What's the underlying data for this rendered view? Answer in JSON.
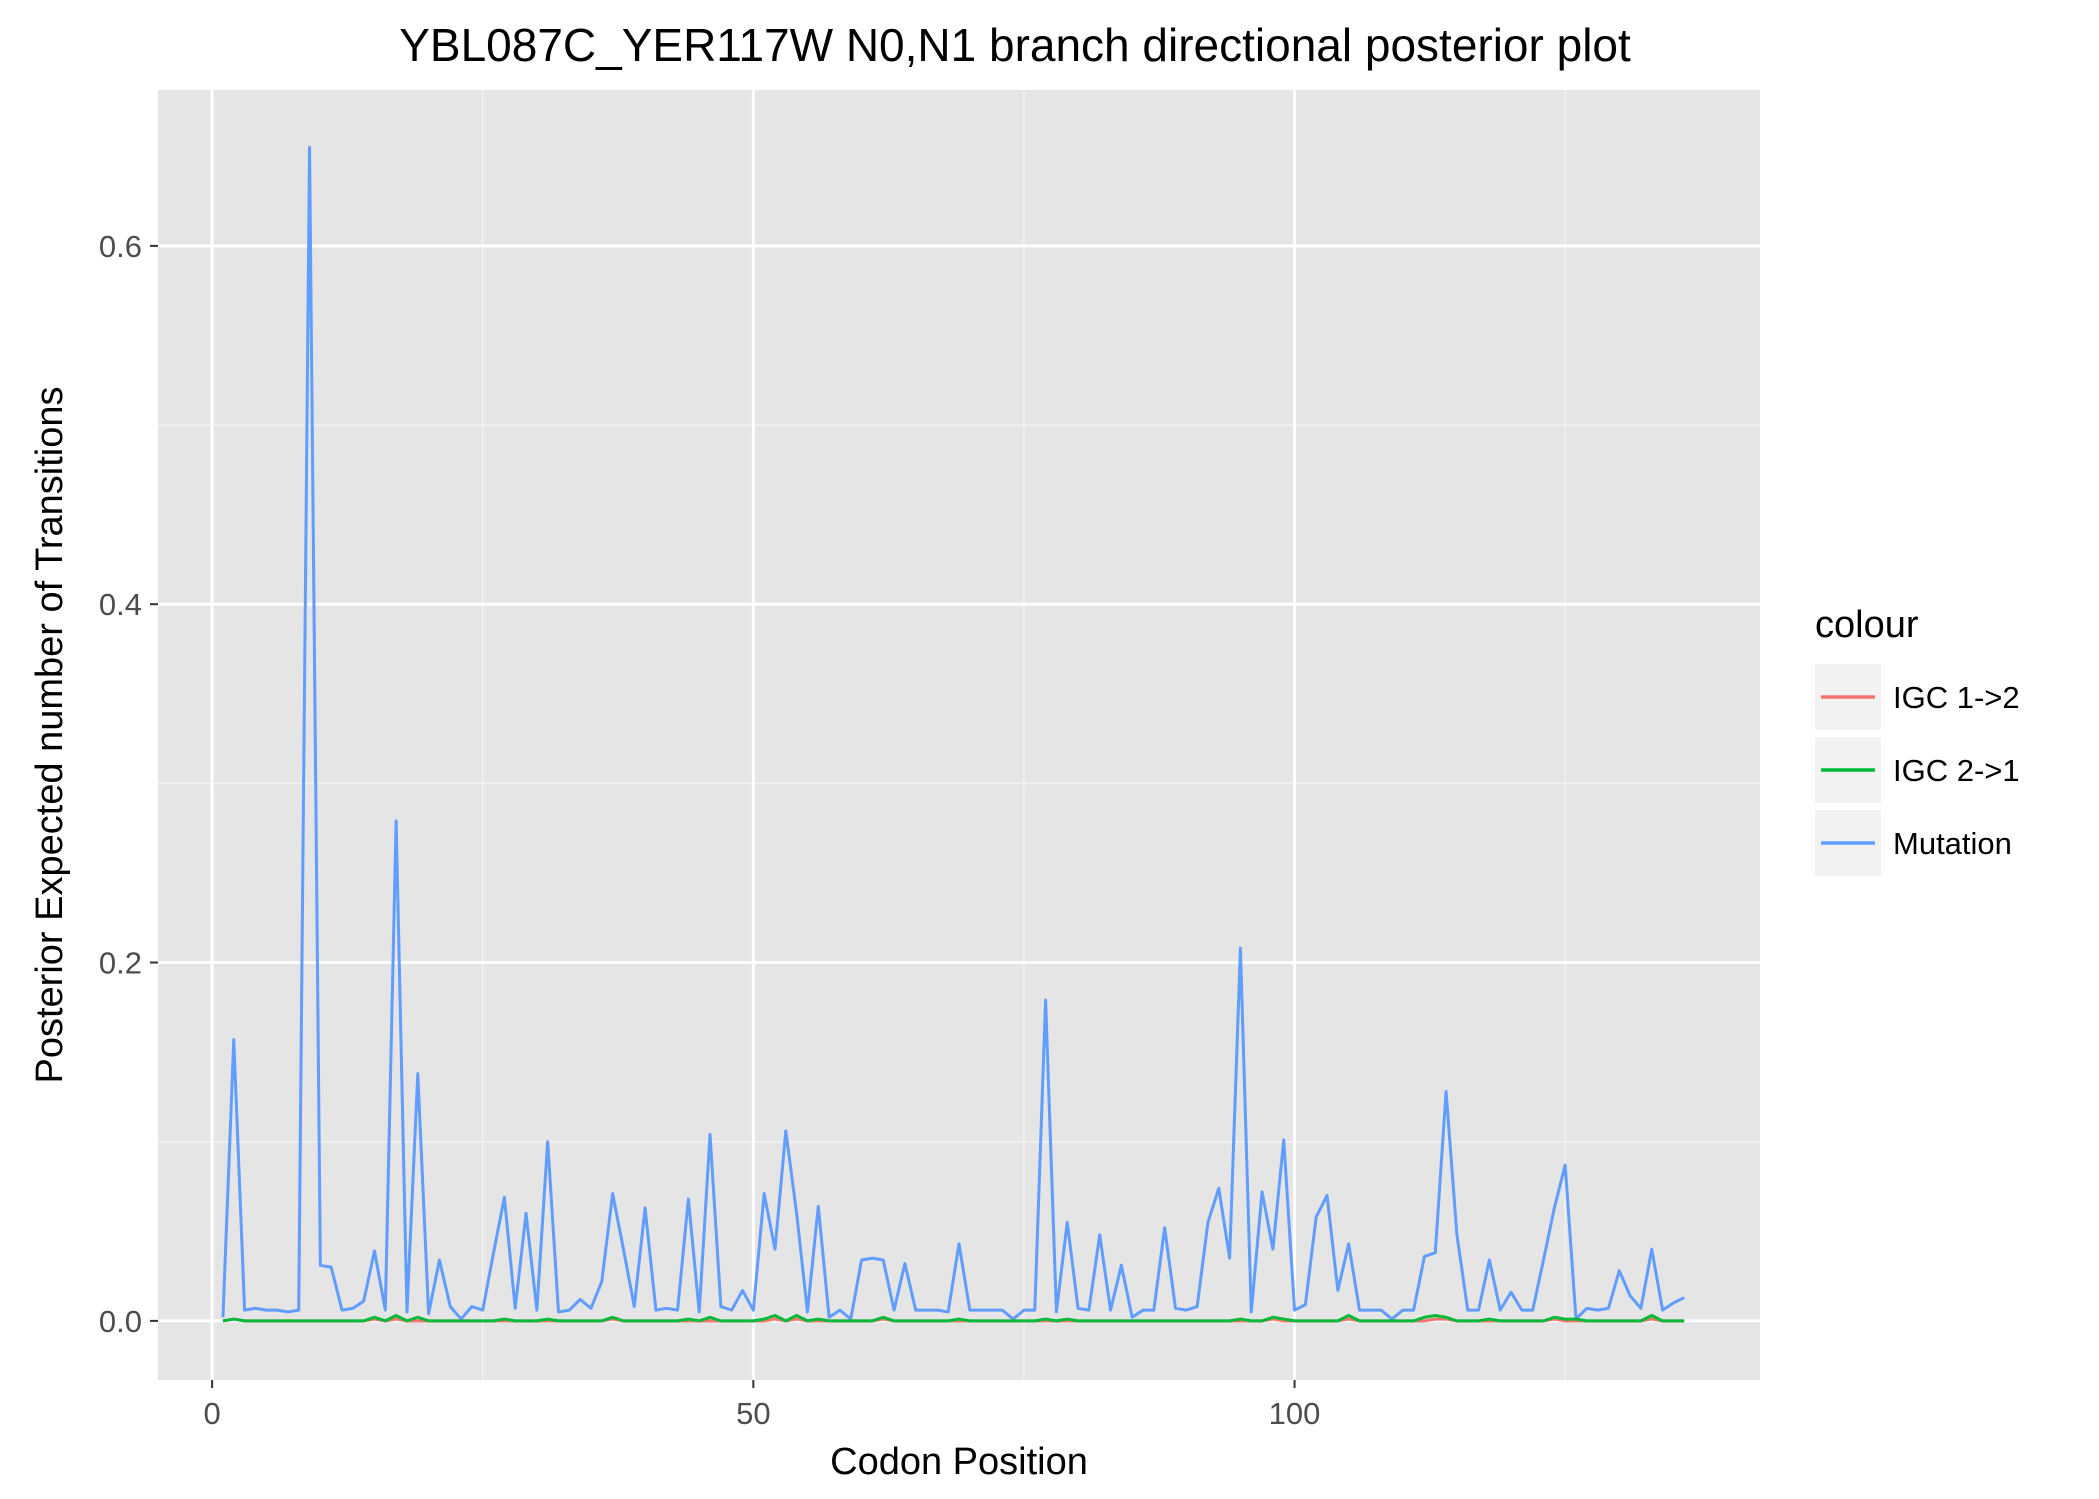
{
  "chart_data": {
    "type": "line",
    "title": "YBL087C_YER117W N0,N1 branch directional posterior plot",
    "xlabel": "Codon Position",
    "ylabel": "Posterior Expected number of Transitions",
    "xlim": [
      -5,
      143
    ],
    "ylim": [
      -0.033,
      0.687
    ],
    "x_ticks": [
      0,
      50,
      100
    ],
    "x_tick_labels": [
      "0",
      "50",
      "100"
    ],
    "y_ticks": [
      0.0,
      0.2,
      0.4,
      0.6
    ],
    "y_tick_labels": [
      "0.0",
      "0.2",
      "0.4",
      "0.6"
    ],
    "grid": true,
    "legend_position": "right",
    "legend": {
      "title": "colour",
      "entries": [
        "IGC 1->2",
        "IGC 2->1",
        "Mutation"
      ]
    },
    "series": [
      {
        "name": "Mutation",
        "color": "#619CFF",
        "x": [
          1,
          2,
          3,
          4,
          5,
          6,
          7,
          8,
          9,
          10,
          11,
          12,
          13,
          14,
          15,
          16,
          17,
          18,
          19,
          20,
          21,
          22,
          23,
          24,
          25,
          26,
          27,
          28,
          29,
          30,
          31,
          32,
          33,
          34,
          35,
          36,
          37,
          38,
          39,
          40,
          41,
          42,
          43,
          44,
          45,
          46,
          47,
          48,
          49,
          50,
          51,
          52,
          53,
          54,
          55,
          56,
          57,
          58,
          59,
          60,
          61,
          62,
          63,
          64,
          65,
          66,
          67,
          68,
          69,
          70,
          71,
          72,
          73,
          74,
          75,
          76,
          77,
          78,
          79,
          80,
          81,
          82,
          83,
          84,
          85,
          86,
          87,
          88,
          89,
          90,
          91,
          92,
          93,
          94,
          95,
          96,
          97,
          98,
          99,
          100,
          101,
          102,
          103,
          104,
          105,
          106,
          107,
          108,
          109,
          110,
          111,
          112,
          113,
          114,
          115,
          116,
          117,
          118,
          119,
          120,
          121,
          122,
          123,
          124,
          125,
          126,
          127,
          128,
          129,
          130,
          131,
          132,
          133,
          134,
          135,
          136
        ],
        "y": [
          0.002,
          0.157,
          0.006,
          0.007,
          0.006,
          0.006,
          0.005,
          0.006,
          0.655,
          0.031,
          0.03,
          0.006,
          0.007,
          0.011,
          0.039,
          0.006,
          0.279,
          0.005,
          0.138,
          0.004,
          0.034,
          0.008,
          0.001,
          0.008,
          0.006,
          0.038,
          0.069,
          0.007,
          0.06,
          0.006,
          0.1,
          0.005,
          0.006,
          0.012,
          0.007,
          0.022,
          0.071,
          0.04,
          0.008,
          0.063,
          0.006,
          0.007,
          0.006,
          0.068,
          0.005,
          0.104,
          0.008,
          0.006,
          0.017,
          0.006,
          0.071,
          0.04,
          0.106,
          0.06,
          0.005,
          0.064,
          0.002,
          0.006,
          0.001,
          0.034,
          0.035,
          0.034,
          0.006,
          0.032,
          0.006,
          0.006,
          0.006,
          0.005,
          0.043,
          0.006,
          0.006,
          0.006,
          0.006,
          0.001,
          0.006,
          0.006,
          0.179,
          0.005,
          0.055,
          0.007,
          0.006,
          0.048,
          0.006,
          0.031,
          0.002,
          0.006,
          0.006,
          0.052,
          0.007,
          0.006,
          0.008,
          0.055,
          0.074,
          0.035,
          0.208,
          0.005,
          0.072,
          0.04,
          0.101,
          0.006,
          0.009,
          0.058,
          0.07,
          0.017,
          0.043,
          0.006,
          0.006,
          0.006,
          0.001,
          0.006,
          0.006,
          0.036,
          0.038,
          0.128,
          0.048,
          0.006,
          0.006,
          0.034,
          0.006,
          0.016,
          0.006,
          0.006,
          0.034,
          0.063,
          0.087,
          0.001,
          0.007,
          0.006,
          0.007,
          0.028,
          0.014,
          0.007,
          0.04,
          0.006,
          0.01,
          0.013
        ]
      },
      {
        "name": "IGC 1->2",
        "color": "#F8766D",
        "x": [
          1,
          2,
          3,
          4,
          5,
          6,
          7,
          8,
          9,
          10,
          11,
          12,
          13,
          14,
          15,
          16,
          17,
          18,
          19,
          20,
          21,
          22,
          23,
          24,
          25,
          26,
          27,
          28,
          29,
          30,
          31,
          32,
          33,
          34,
          35,
          36,
          37,
          38,
          39,
          40,
          41,
          42,
          43,
          44,
          45,
          46,
          47,
          48,
          49,
          50,
          51,
          52,
          53,
          54,
          55,
          56,
          57,
          58,
          59,
          60,
          61,
          62,
          63,
          64,
          65,
          66,
          67,
          68,
          69,
          70,
          71,
          72,
          73,
          74,
          75,
          76,
          77,
          78,
          79,
          80,
          81,
          82,
          83,
          84,
          85,
          86,
          87,
          88,
          89,
          90,
          91,
          92,
          93,
          94,
          95,
          96,
          97,
          98,
          99,
          100,
          101,
          102,
          103,
          104,
          105,
          106,
          107,
          108,
          109,
          110,
          111,
          112,
          113,
          114,
          115,
          116,
          117,
          118,
          119,
          120,
          121,
          122,
          123,
          124,
          125,
          126,
          127,
          128,
          129,
          130,
          131,
          132,
          133,
          134,
          135,
          136
        ],
        "y": [
          0.0,
          0.001,
          0.0,
          0.0,
          0.0,
          0.0,
          0.0,
          0.0,
          0.0,
          0.0,
          0.0,
          0.0,
          0.0,
          0.0,
          0.001,
          0.0,
          0.001,
          0.0,
          0.0,
          0.0,
          0.0,
          0.0,
          0.0,
          0.0,
          0.0,
          0.0,
          0.0,
          0.0,
          0.0,
          0.0,
          0.0,
          0.0,
          0.0,
          0.0,
          0.0,
          0.0,
          0.001,
          0.0,
          0.0,
          0.0,
          0.0,
          0.0,
          0.0,
          0.0,
          0.0,
          0.0,
          0.0,
          0.0,
          0.0,
          0.0,
          0.0,
          0.001,
          0.0,
          0.001,
          0.0,
          0.0,
          0.0,
          0.0,
          0.0,
          0.0,
          0.0,
          0.001,
          0.0,
          0.0,
          0.0,
          0.0,
          0.0,
          0.0,
          0.0,
          0.0,
          0.0,
          0.0,
          0.0,
          0.0,
          0.0,
          0.0,
          0.0,
          0.0,
          0.0,
          0.0,
          0.0,
          0.0,
          0.0,
          0.0,
          0.0,
          0.0,
          0.0,
          0.0,
          0.0,
          0.0,
          0.0,
          0.0,
          0.0,
          0.0,
          0.0,
          0.0,
          0.0,
          0.001,
          0.0,
          0.0,
          0.0,
          0.0,
          0.0,
          0.0,
          0.001,
          0.0,
          0.0,
          0.0,
          0.0,
          0.0,
          0.0,
          0.0,
          0.001,
          0.001,
          0.0,
          0.0,
          0.0,
          0.0,
          0.0,
          0.0,
          0.0,
          0.0,
          0.0,
          0.001,
          0.0,
          0.0,
          0.0,
          0.0,
          0.0,
          0.0,
          0.0,
          0.0,
          0.001,
          0.0,
          0.0,
          0.0
        ]
      },
      {
        "name": "IGC 2->1",
        "color": "#00BA38",
        "x": [
          1,
          2,
          3,
          4,
          5,
          6,
          7,
          8,
          9,
          10,
          11,
          12,
          13,
          14,
          15,
          16,
          17,
          18,
          19,
          20,
          21,
          22,
          23,
          24,
          25,
          26,
          27,
          28,
          29,
          30,
          31,
          32,
          33,
          34,
          35,
          36,
          37,
          38,
          39,
          40,
          41,
          42,
          43,
          44,
          45,
          46,
          47,
          48,
          49,
          50,
          51,
          52,
          53,
          54,
          55,
          56,
          57,
          58,
          59,
          60,
          61,
          62,
          63,
          64,
          65,
          66,
          67,
          68,
          69,
          70,
          71,
          72,
          73,
          74,
          75,
          76,
          77,
          78,
          79,
          80,
          81,
          82,
          83,
          84,
          85,
          86,
          87,
          88,
          89,
          90,
          91,
          92,
          93,
          94,
          95,
          96,
          97,
          98,
          99,
          100,
          101,
          102,
          103,
          104,
          105,
          106,
          107,
          108,
          109,
          110,
          111,
          112,
          113,
          114,
          115,
          116,
          117,
          118,
          119,
          120,
          121,
          122,
          123,
          124,
          125,
          126,
          127,
          128,
          129,
          130,
          131,
          132,
          133,
          134,
          135,
          136
        ],
        "y": [
          0.0,
          0.001,
          0.0,
          0.0,
          0.0,
          0.0,
          0.0,
          0.0,
          0.0,
          0.0,
          0.0,
          0.0,
          0.0,
          0.0,
          0.002,
          0.0,
          0.003,
          0.0,
          0.002,
          0.0,
          0.0,
          0.0,
          0.0,
          0.0,
          0.0,
          0.0,
          0.001,
          0.0,
          0.0,
          0.0,
          0.001,
          0.0,
          0.0,
          0.0,
          0.0,
          0.0,
          0.002,
          0.0,
          0.0,
          0.0,
          0.0,
          0.0,
          0.0,
          0.001,
          0.0,
          0.002,
          0.0,
          0.0,
          0.0,
          0.0,
          0.001,
          0.003,
          0.0,
          0.003,
          0.0,
          0.001,
          0.0,
          0.0,
          0.0,
          0.0,
          0.0,
          0.002,
          0.0,
          0.0,
          0.0,
          0.0,
          0.0,
          0.0,
          0.001,
          0.0,
          0.0,
          0.0,
          0.0,
          0.0,
          0.0,
          0.0,
          0.001,
          0.0,
          0.001,
          0.0,
          0.0,
          0.0,
          0.0,
          0.0,
          0.0,
          0.0,
          0.0,
          0.0,
          0.0,
          0.0,
          0.0,
          0.0,
          0.0,
          0.0,
          0.001,
          0.0,
          0.0,
          0.002,
          0.001,
          0.0,
          0.0,
          0.0,
          0.0,
          0.0,
          0.003,
          0.0,
          0.0,
          0.0,
          0.0,
          0.0,
          0.0,
          0.002,
          0.003,
          0.002,
          0.0,
          0.0,
          0.0,
          0.001,
          0.0,
          0.0,
          0.0,
          0.0,
          0.0,
          0.002,
          0.001,
          0.001,
          0.0,
          0.0,
          0.0,
          0.0,
          0.0,
          0.0,
          0.003,
          0.0,
          0.0,
          0.0
        ]
      }
    ]
  }
}
